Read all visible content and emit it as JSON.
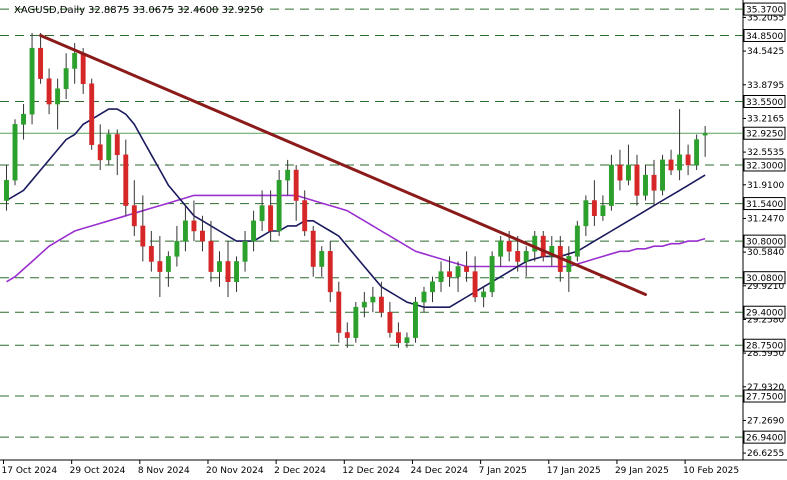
{
  "header": {
    "symbol": "XAGUSD,Daily",
    "ohlc": "32.8875 33.0675 32.4600 32.9250"
  },
  "colors": {
    "bull": "#2ca02c",
    "bear": "#d62728",
    "trendline": "#8b1a1a",
    "ma_fast": "#1a1a5e",
    "ma_slow": "#9b30d0",
    "level": "#2e6b2e",
    "price_line": "#5aa05a"
  },
  "chart_data": {
    "type": "candlestick",
    "ylim": [
      26.49,
      35.47
    ],
    "y_ticks": [
      "35.2055",
      "34.5425",
      "33.8795",
      "33.2165",
      "32.5535",
      "31.9100",
      "31.2470",
      "30.5840",
      "29.9210",
      "29.2580",
      "28.5950",
      "27.9320",
      "27.2690",
      "26.6255"
    ],
    "x_ticks": [
      {
        "label": "17 Oct 2024",
        "index": 0
      },
      {
        "label": "29 Oct 2024",
        "index": 8
      },
      {
        "label": "8 Nov 2024",
        "index": 16
      },
      {
        "label": "20 Nov 2024",
        "index": 24
      },
      {
        "label": "2 Dec 2024",
        "index": 32
      },
      {
        "label": "12 Dec 2024",
        "index": 40
      },
      {
        "label": "24 Dec 2024",
        "index": 48
      },
      {
        "label": "7 Jan 2025",
        "index": 56
      },
      {
        "label": "17 Jan 2025",
        "index": 64
      },
      {
        "label": "29 Jan 2025",
        "index": 72
      },
      {
        "label": "10 Feb 2025",
        "index": 80
      }
    ],
    "levels": [
      "35.3700",
      "34.8500",
      "33.5500",
      "32.3000",
      "31.5400",
      "30.8000",
      "30.0800",
      "29.4000",
      "28.7500",
      "27.7500",
      "26.9400"
    ],
    "current_price": "32.9250",
    "trendline": [
      {
        "index": 4,
        "price": 34.85
      },
      {
        "index": 75,
        "price": 29.75
      }
    ],
    "candles": [
      [
        31.6,
        32.3,
        31.4,
        32.0
      ],
      [
        32.0,
        33.2,
        31.9,
        33.1
      ],
      [
        33.1,
        33.5,
        32.8,
        33.3
      ],
      [
        33.3,
        34.9,
        33.1,
        34.6
      ],
      [
        34.6,
        34.9,
        33.9,
        34.0
      ],
      [
        34.0,
        34.2,
        33.3,
        33.5
      ],
      [
        33.5,
        34.0,
        33.0,
        33.8
      ],
      [
        33.8,
        34.5,
        33.6,
        34.2
      ],
      [
        34.2,
        34.7,
        33.9,
        34.5
      ],
      [
        34.5,
        34.6,
        33.7,
        33.9
      ],
      [
        33.9,
        34.0,
        32.6,
        32.7
      ],
      [
        32.7,
        33.1,
        32.2,
        32.4
      ],
      [
        32.4,
        33.0,
        32.3,
        32.9
      ],
      [
        32.9,
        33.0,
        32.1,
        32.5
      ],
      [
        32.5,
        32.8,
        31.3,
        31.5
      ],
      [
        31.5,
        32.0,
        30.9,
        31.1
      ],
      [
        31.1,
        31.7,
        30.4,
        30.7
      ],
      [
        30.7,
        31.0,
        30.2,
        30.4
      ],
      [
        30.4,
        30.9,
        29.7,
        30.2
      ],
      [
        30.2,
        30.6,
        29.9,
        30.5
      ],
      [
        30.5,
        31.1,
        30.3,
        30.8
      ],
      [
        30.8,
        31.5,
        30.6,
        31.2
      ],
      [
        31.2,
        31.6,
        30.8,
        31.0
      ],
      [
        31.0,
        31.3,
        30.6,
        30.8
      ],
      [
        30.8,
        31.2,
        30.0,
        30.2
      ],
      [
        30.2,
        30.6,
        29.9,
        30.4
      ],
      [
        30.4,
        30.8,
        29.7,
        30.0
      ],
      [
        30.0,
        30.5,
        29.8,
        30.4
      ],
      [
        30.4,
        31.0,
        30.2,
        30.8
      ],
      [
        30.8,
        31.4,
        30.6,
        31.2
      ],
      [
        31.2,
        31.8,
        31.0,
        31.5
      ],
      [
        31.5,
        31.8,
        30.8,
        31.0
      ],
      [
        31.0,
        32.2,
        30.9,
        32.0
      ],
      [
        32.0,
        32.4,
        31.7,
        32.2
      ],
      [
        32.2,
        32.3,
        31.2,
        31.6
      ],
      [
        31.6,
        31.8,
        30.9,
        31.0
      ],
      [
        31.0,
        31.1,
        30.1,
        30.3
      ],
      [
        30.3,
        30.7,
        30.1,
        30.6
      ],
      [
        30.6,
        30.8,
        29.6,
        29.8
      ],
      [
        29.8,
        30.0,
        28.8,
        29.0
      ],
      [
        29.0,
        29.2,
        28.7,
        28.9
      ],
      [
        28.9,
        29.6,
        28.8,
        29.5
      ],
      [
        29.5,
        29.8,
        29.3,
        29.6
      ],
      [
        29.6,
        29.9,
        29.4,
        29.7
      ],
      [
        29.7,
        30.0,
        29.3,
        29.4
      ],
      [
        29.4,
        29.6,
        28.9,
        29.0
      ],
      [
        29.0,
        29.2,
        28.7,
        28.8
      ],
      [
        28.8,
        29.0,
        28.7,
        28.9
      ],
      [
        28.9,
        29.7,
        28.8,
        29.6
      ],
      [
        29.6,
        29.9,
        29.4,
        29.8
      ],
      [
        29.8,
        30.1,
        29.6,
        30.0
      ],
      [
        30.0,
        30.4,
        29.8,
        30.2
      ],
      [
        30.2,
        30.5,
        29.9,
        30.1
      ],
      [
        30.1,
        30.4,
        29.8,
        30.3
      ],
      [
        30.3,
        30.6,
        30.0,
        30.2
      ],
      [
        30.2,
        30.5,
        29.6,
        29.7
      ],
      [
        29.7,
        29.9,
        29.5,
        29.8
      ],
      [
        29.8,
        30.6,
        29.7,
        30.5
      ],
      [
        30.5,
        30.9,
        30.3,
        30.8
      ],
      [
        30.8,
        31.0,
        30.4,
        30.6
      ],
      [
        30.6,
        30.9,
        30.2,
        30.4
      ],
      [
        30.4,
        30.7,
        30.1,
        30.6
      ],
      [
        30.6,
        31.0,
        30.4,
        30.9
      ],
      [
        30.9,
        31.0,
        30.4,
        30.5
      ],
      [
        30.5,
        30.9,
        30.3,
        30.7
      ],
      [
        30.7,
        30.9,
        30.0,
        30.2
      ],
      [
        30.2,
        30.7,
        29.8,
        30.5
      ],
      [
        30.5,
        31.2,
        30.4,
        31.1
      ],
      [
        31.1,
        31.7,
        30.9,
        31.6
      ],
      [
        31.6,
        32.0,
        31.1,
        31.3
      ],
      [
        31.3,
        31.7,
        31.2,
        31.5
      ],
      [
        31.5,
        32.5,
        31.4,
        32.3
      ],
      [
        32.3,
        32.6,
        31.8,
        32.0
      ],
      [
        32.0,
        32.7,
        31.9,
        32.3
      ],
      [
        32.3,
        32.5,
        31.5,
        31.7
      ],
      [
        31.7,
        32.3,
        31.6,
        32.1
      ],
      [
        32.1,
        32.4,
        31.5,
        31.8
      ],
      [
        31.8,
        32.5,
        31.7,
        32.4
      ],
      [
        32.4,
        32.6,
        32.1,
        32.2
      ],
      [
        32.2,
        33.4,
        32.0,
        32.5
      ],
      [
        32.5,
        32.7,
        32.1,
        32.3
      ],
      [
        32.3,
        32.9,
        32.2,
        32.8
      ],
      [
        32.8875,
        33.0675,
        32.46,
        32.925
      ]
    ],
    "ma_fast": [
      31.6,
      31.7,
      31.8,
      32.0,
      32.2,
      32.4,
      32.6,
      32.8,
      32.9,
      33.1,
      33.2,
      33.3,
      33.4,
      33.4,
      33.3,
      33.1,
      32.8,
      32.5,
      32.2,
      31.9,
      31.7,
      31.5,
      31.3,
      31.2,
      31.1,
      31.0,
      30.9,
      30.8,
      30.8,
      30.8,
      30.9,
      31.0,
      31.0,
      31.1,
      31.1,
      31.2,
      31.2,
      31.1,
      31.0,
      30.9,
      30.7,
      30.5,
      30.3,
      30.1,
      29.9,
      29.8,
      29.7,
      29.6,
      29.55,
      29.5,
      29.5,
      29.5,
      29.5,
      29.6,
      29.7,
      29.8,
      29.9,
      30.0,
      30.1,
      30.2,
      30.3,
      30.4,
      30.45,
      30.5,
      30.5,
      30.5,
      30.55,
      30.6,
      30.7,
      30.8,
      30.9,
      31.0,
      31.1,
      31.2,
      31.3,
      31.4,
      31.5,
      31.6,
      31.7,
      31.8,
      31.9,
      32.0,
      32.1
    ],
    "ma_slow": [
      30.0,
      30.1,
      30.25,
      30.4,
      30.55,
      30.7,
      30.8,
      30.9,
      31.0,
      31.05,
      31.1,
      31.15,
      31.2,
      31.25,
      31.3,
      31.35,
      31.4,
      31.45,
      31.5,
      31.55,
      31.6,
      31.65,
      31.7,
      31.7,
      31.7,
      31.7,
      31.7,
      31.7,
      31.7,
      31.7,
      31.7,
      31.7,
      31.7,
      31.7,
      31.7,
      31.65,
      31.6,
      31.55,
      31.5,
      31.45,
      31.4,
      31.3,
      31.2,
      31.1,
      31.0,
      30.9,
      30.8,
      30.7,
      30.6,
      30.55,
      30.5,
      30.45,
      30.4,
      30.35,
      30.3,
      30.3,
      30.3,
      30.3,
      30.3,
      30.3,
      30.3,
      30.3,
      30.3,
      30.3,
      30.3,
      30.3,
      30.3,
      30.35,
      30.4,
      30.45,
      30.5,
      30.55,
      30.6,
      30.6,
      30.65,
      30.65,
      30.7,
      30.7,
      30.75,
      30.75,
      30.8,
      30.8,
      30.85
    ]
  }
}
